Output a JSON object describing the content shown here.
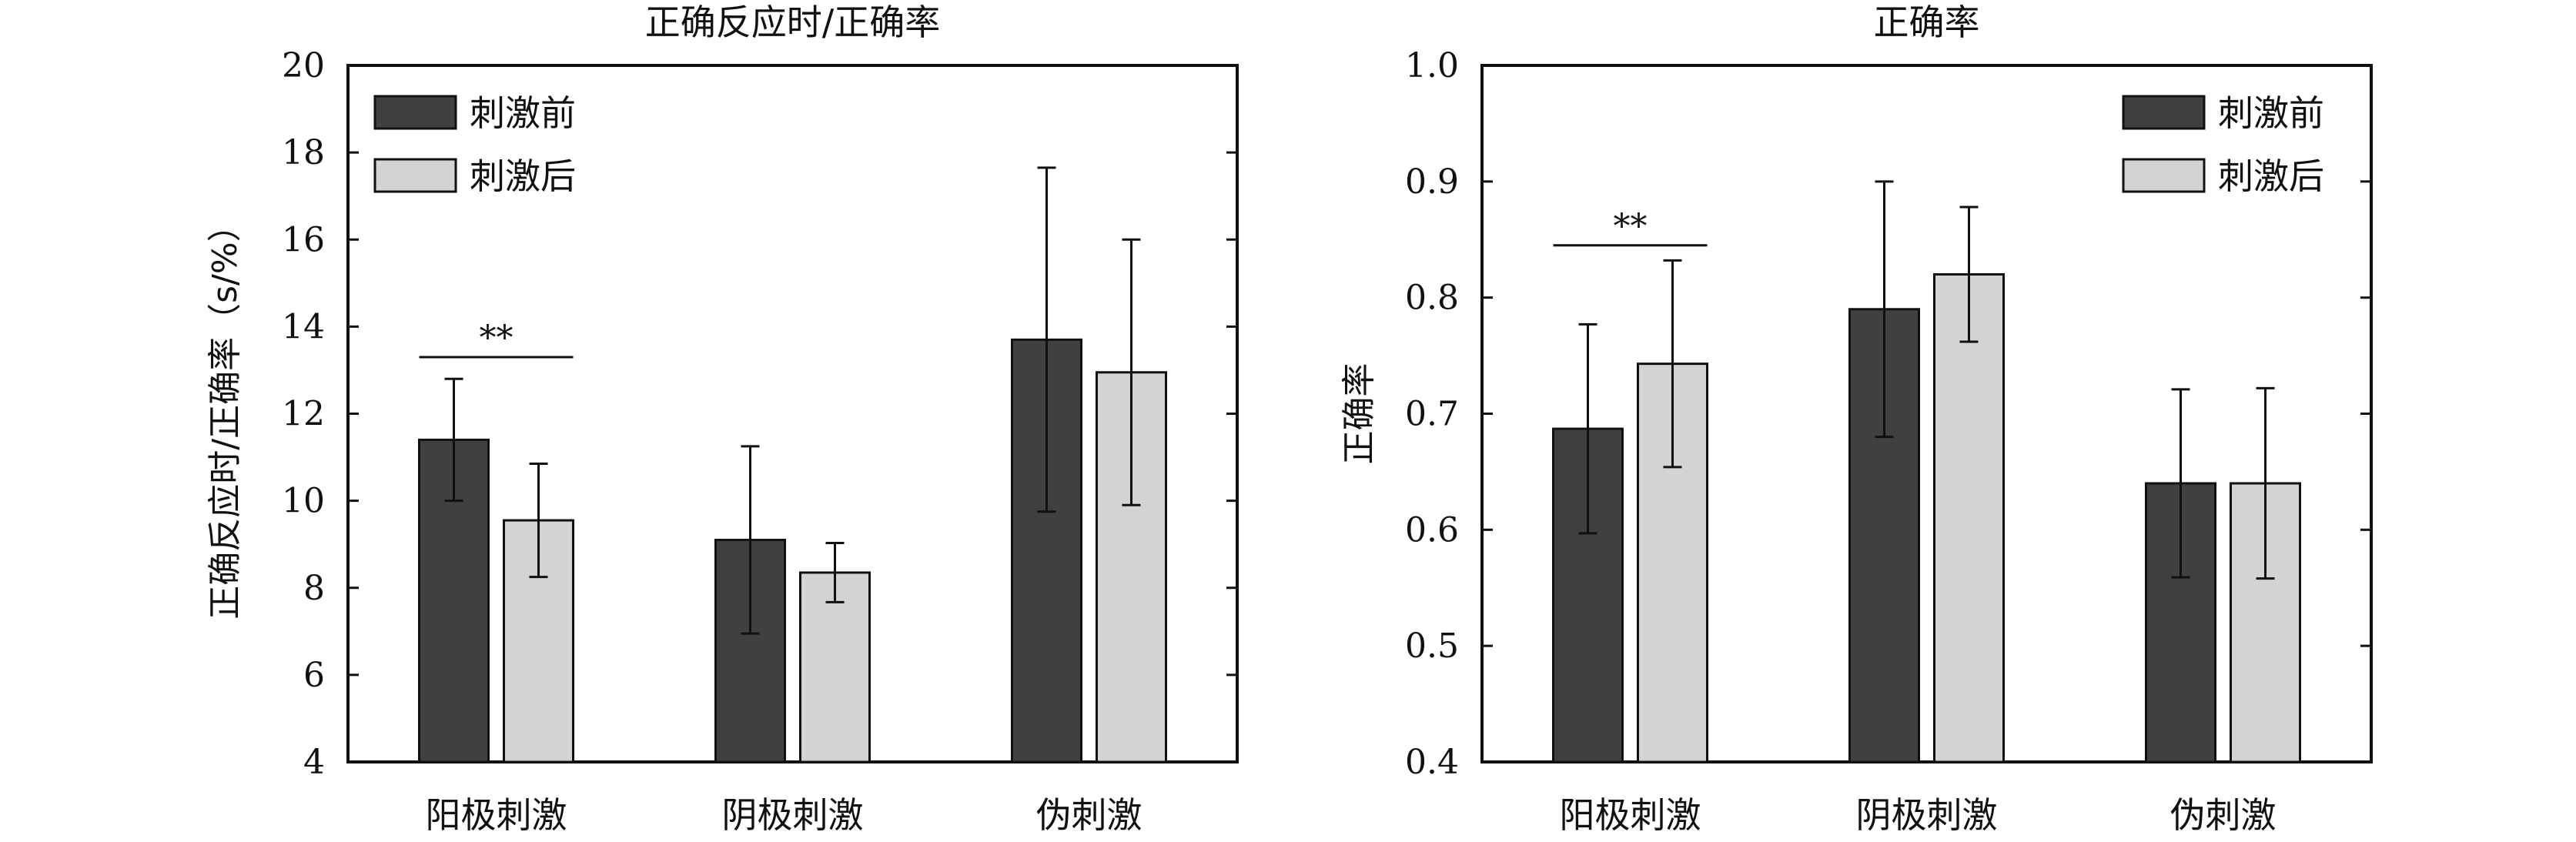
{
  "chart_data": [
    {
      "type": "bar",
      "title": "正确反应时/正确率",
      "xlabel": "",
      "ylabel": "正确反应时/正确率（s/%）",
      "ylim": [
        4,
        20
      ],
      "yticks": [
        "4",
        "6",
        "8",
        "10",
        "12",
        "14",
        "16",
        "18",
        "20"
      ],
      "categories": [
        "阳极刺激",
        "阴极刺激",
        "伪刺激"
      ],
      "series": [
        {
          "name": "刺激前",
          "color": "#404040",
          "values": [
            11.4,
            9.1,
            13.7
          ],
          "errors": [
            1.4,
            2.15,
            3.95
          ]
        },
        {
          "name": "刺激后",
          "color": "#d3d3d3",
          "values": [
            9.55,
            8.35,
            12.95
          ],
          "errors": [
            1.3,
            0.68,
            3.05
          ]
        }
      ],
      "legend_position": "top-left",
      "annotations": [
        {
          "text": "**",
          "category_index": 0,
          "y": 13.3
        }
      ]
    },
    {
      "type": "bar",
      "title": "正确率",
      "xlabel": "",
      "ylabel": "正确率",
      "ylim": [
        0.4,
        1.0
      ],
      "yticks": [
        "0.4",
        "0.5",
        "0.6",
        "0.7",
        "0.8",
        "0.9",
        "1.0"
      ],
      "categories": [
        "阳极刺激",
        "阴极刺激",
        "伪刺激"
      ],
      "series": [
        {
          "name": "刺激前",
          "color": "#404040",
          "values": [
            0.687,
            0.79,
            0.64
          ],
          "errors": [
            0.09,
            0.11,
            0.081
          ]
        },
        {
          "name": "刺激后",
          "color": "#d3d3d3",
          "values": [
            0.743,
            0.82,
            0.64
          ],
          "errors": [
            0.089,
            0.058,
            0.082
          ]
        }
      ],
      "legend_position": "top-right",
      "annotations": [
        {
          "text": "**",
          "category_index": 0,
          "y": 0.845
        }
      ]
    }
  ]
}
